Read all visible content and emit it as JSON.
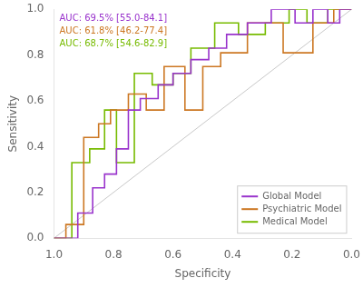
{
  "chart_data": {
    "type": "line",
    "xlabel": "Specificity",
    "ylabel": "Sensitivity",
    "xlim": [
      1.0,
      0.0
    ],
    "ylim": [
      0.0,
      1.0
    ],
    "xticks": [
      {
        "value": 1.0,
        "label": "1.0"
      },
      0.8,
      0.6,
      0.4,
      0.2,
      {
        "value": 0.0,
        "label": "0.0"
      }
    ],
    "yticks": [
      {
        "value": 0.0,
        "label": "0.0"
      },
      0.2,
      0.4,
      0.6,
      0.8,
      {
        "value": 1.0,
        "label": "1.0"
      }
    ],
    "grid": false,
    "legend": "lower right",
    "reference_line": {
      "x": [
        1.0,
        0.0
      ],
      "values": [
        0.0,
        1.0
      ],
      "color": "#c8c8c8"
    },
    "series": [
      {
        "name": "Global Model",
        "color": "#9933cc",
        "x": [
          1.0,
          0.92,
          0.92,
          0.87,
          0.87,
          0.83,
          0.83,
          0.79,
          0.79,
          0.75,
          0.75,
          0.71,
          0.71,
          0.65,
          0.65,
          0.6,
          0.6,
          0.54,
          0.54,
          0.48,
          0.48,
          0.42,
          0.42,
          0.35,
          0.35,
          0.27,
          0.27,
          0.19,
          0.19,
          0.13,
          0.13,
          0.08,
          0.08,
          0.04,
          0.04,
          0.0
        ],
        "values": [
          0.0,
          0.0,
          0.11,
          0.11,
          0.22,
          0.22,
          0.28,
          0.28,
          0.39,
          0.39,
          0.56,
          0.56,
          0.61,
          0.61,
          0.67,
          0.67,
          0.72,
          0.72,
          0.78,
          0.78,
          0.83,
          0.83,
          0.89,
          0.89,
          0.94,
          0.94,
          1.0,
          1.0,
          0.94,
          0.94,
          1.0,
          1.0,
          0.94,
          0.94,
          1.0,
          1.0
        ]
      },
      {
        "name": "Psychiatric Model",
        "color": "#cc7722",
        "x": [
          1.0,
          0.96,
          0.96,
          0.9,
          0.9,
          0.85,
          0.85,
          0.81,
          0.81,
          0.75,
          0.75,
          0.69,
          0.69,
          0.63,
          0.63,
          0.56,
          0.56,
          0.5,
          0.5,
          0.44,
          0.44,
          0.35,
          0.35,
          0.23,
          0.23,
          0.13,
          0.13,
          0.06,
          0.06,
          0.0
        ],
        "values": [
          0.0,
          0.0,
          0.06,
          0.06,
          0.44,
          0.44,
          0.5,
          0.5,
          0.56,
          0.56,
          0.63,
          0.63,
          0.56,
          0.56,
          0.75,
          0.75,
          0.56,
          0.56,
          0.75,
          0.75,
          0.81,
          0.81,
          0.94,
          0.94,
          0.81,
          0.81,
          0.94,
          0.94,
          1.0,
          1.0
        ]
      },
      {
        "name": "Medical Model",
        "color": "#77bb00",
        "x": [
          1.0,
          0.94,
          0.94,
          0.88,
          0.88,
          0.83,
          0.83,
          0.79,
          0.79,
          0.73,
          0.73,
          0.67,
          0.67,
          0.6,
          0.6,
          0.54,
          0.54,
          0.46,
          0.46,
          0.38,
          0.38,
          0.29,
          0.29,
          0.21,
          0.21,
          0.15,
          0.15,
          0.08,
          0.08,
          0.0
        ],
        "values": [
          0.0,
          0.0,
          0.33,
          0.33,
          0.39,
          0.39,
          0.56,
          0.56,
          0.33,
          0.33,
          0.72,
          0.72,
          0.67,
          0.67,
          0.72,
          0.72,
          0.83,
          0.83,
          0.94,
          0.94,
          0.89,
          0.89,
          0.94,
          0.94,
          1.0,
          1.0,
          0.94,
          0.94,
          1.0,
          1.0
        ]
      }
    ],
    "annotations": [
      {
        "text": "AUC: 69.5% [55.0-84.1]",
        "color": "#9933cc"
      },
      {
        "text": "AUC: 61.8% [46.2-77.4]",
        "color": "#cc7722"
      },
      {
        "text": "AUC: 68.7% [54.6-82.9]",
        "color": "#77bb00"
      }
    ]
  }
}
